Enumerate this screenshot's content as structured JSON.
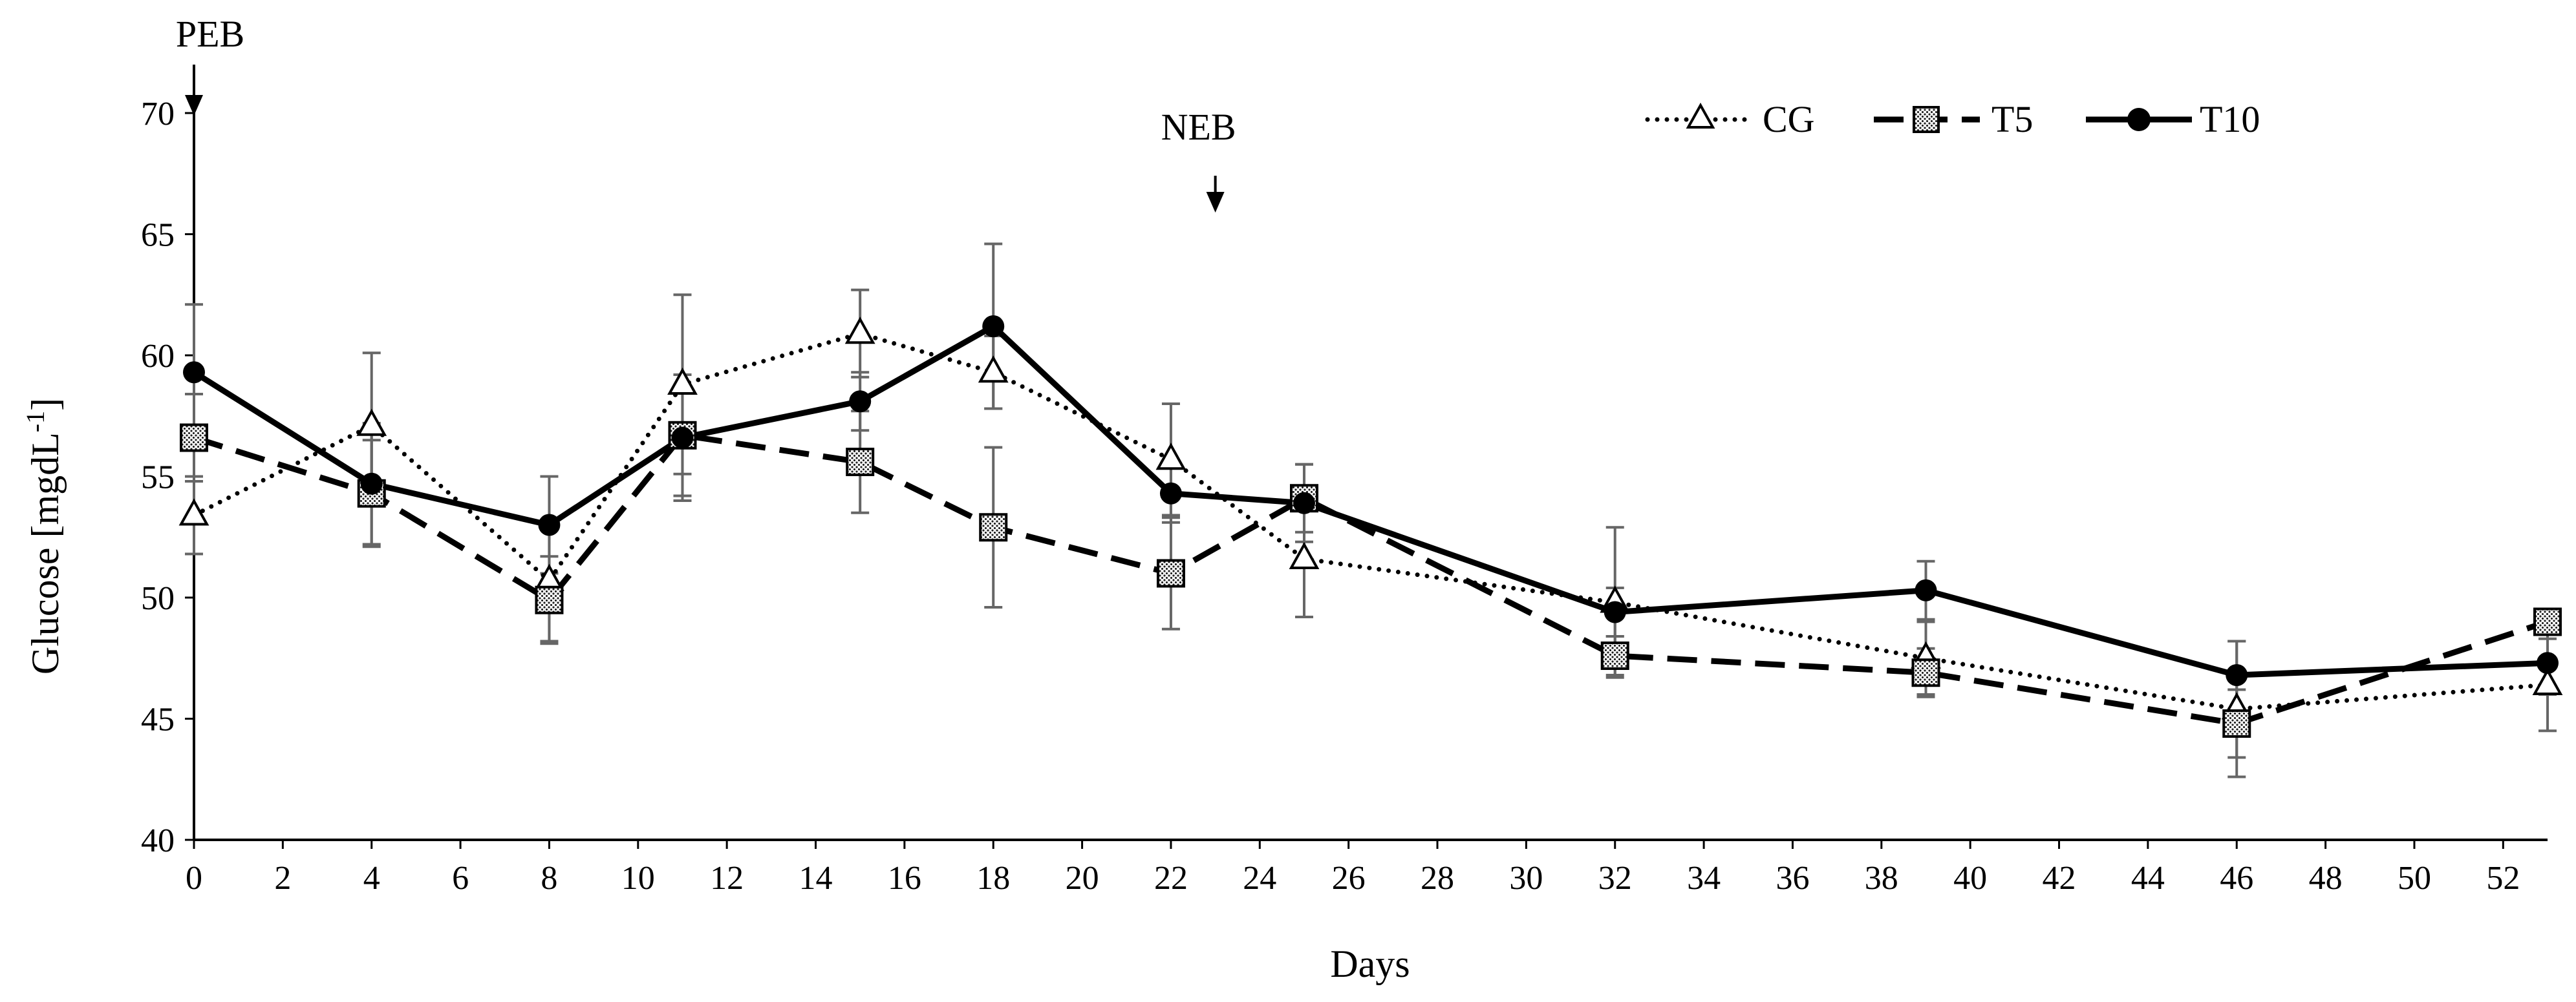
{
  "chart_data": {
    "type": "line",
    "title": "",
    "xlabel": "Days",
    "ylabel_main": "Glucose [mgdL",
    "ylabel_sup": "-1",
    "ylabel_end": "]",
    "xlim": [
      0,
      53
    ],
    "ylim": [
      40,
      72
    ],
    "xticks": [
      0,
      2,
      4,
      6,
      8,
      10,
      12,
      14,
      16,
      18,
      20,
      22,
      24,
      26,
      28,
      30,
      32,
      34,
      36,
      38,
      40,
      42,
      44,
      46,
      48,
      50,
      52
    ],
    "yticks": [
      40,
      45,
      50,
      55,
      60,
      65,
      70
    ],
    "legend_position": "top-right",
    "series": [
      {
        "name": "CG",
        "line_style": "dotted",
        "marker": "triangle-open",
        "x": [
          0,
          4,
          8,
          11,
          15,
          18,
          22,
          25,
          32,
          39,
          46,
          53
        ],
        "y": [
          53.4,
          57.1,
          50.7,
          58.8,
          60.9,
          59.3,
          55.7,
          51.6,
          49.8,
          47.5,
          45.4,
          46.4
        ],
        "err": [
          1.6,
          3.0,
          2.5,
          3.7,
          1.8,
          1.5,
          2.3,
          2.4,
          3.1,
          1.5,
          2.8,
          1.9
        ]
      },
      {
        "name": "T5",
        "line_style": "dashed",
        "marker": "square-dotted",
        "x": [
          0,
          4,
          8,
          11,
          15,
          18,
          22,
          25,
          32,
          39,
          46,
          53
        ],
        "y": [
          56.6,
          54.3,
          49.9,
          56.7,
          55.6,
          52.9,
          51.0,
          54.1,
          47.6,
          46.9,
          44.8,
          49.0
        ],
        "err": [
          1.8,
          2.2,
          1.8,
          2.5,
          2.1,
          3.3,
          2.3,
          1.4,
          0.8,
          1.0,
          1.4,
          0.5
        ]
      },
      {
        "name": "T10",
        "line_style": "solid",
        "marker": "circle-filled",
        "x": [
          0,
          4,
          8,
          11,
          15,
          18,
          22,
          25,
          32,
          39,
          46,
          53
        ],
        "y": [
          59.3,
          54.7,
          53.0,
          56.6,
          58.1,
          61.2,
          54.3,
          53.9,
          49.4,
          50.3,
          46.8,
          47.3
        ],
        "err": [
          2.8,
          2.5,
          2.0,
          2.6,
          1.2,
          3.4,
          1.2,
          1.6,
          1.0,
          1.2,
          1.4,
          1.3
        ]
      }
    ],
    "annotations": [
      {
        "label": "PEB",
        "x": 0,
        "y": 70
      },
      {
        "label": "NEB",
        "x": 23,
        "y": 66
      }
    ]
  }
}
